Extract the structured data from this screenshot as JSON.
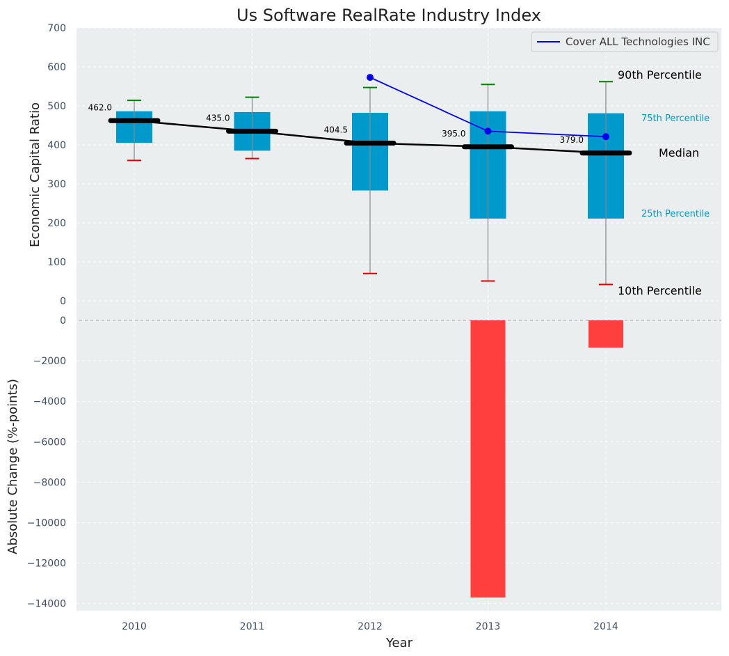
{
  "chart_data": [
    {
      "type": "box",
      "title": "Us Software RealRate Industry Index",
      "ylabel": "Economic Capital Ratio",
      "ylim": [
        0,
        700
      ],
      "yticks": [
        "0",
        "100",
        "200",
        "300",
        "400",
        "500",
        "600",
        "700"
      ],
      "categories": [
        "2010",
        "2011",
        "2012",
        "2013",
        "2014"
      ],
      "p10": [
        360,
        365,
        70,
        51,
        42
      ],
      "p25": [
        405,
        385,
        283,
        211,
        211
      ],
      "median": [
        462.0,
        435.0,
        404.5,
        395.0,
        379.0
      ],
      "median_labels": [
        "462.0",
        "435.0",
        "404.5",
        "395.0",
        "379.0"
      ],
      "p75": [
        486,
        484,
        482,
        486,
        481
      ],
      "p90": [
        514,
        522,
        547,
        555,
        562
      ],
      "series": [
        {
          "name": "Cover ALL Technologies INC",
          "x": [
            "2012",
            "2013",
            "2014"
          ],
          "values": [
            573,
            435,
            421
          ],
          "color": "#0000ee"
        }
      ],
      "annotations": {
        "p90": "90th Percentile",
        "p75": "75th Percentile",
        "median": "Median",
        "p25": "25th Percentile",
        "p10": "10th Percentile"
      },
      "legend_position": "top-right",
      "grid": true,
      "colors": {
        "box": "#0099cc",
        "median": "#000000",
        "whisker_top": "#008000",
        "whisker_bottom": "#dd0000",
        "whisker_line": "#8a8a8a",
        "background": "#eaeeee"
      }
    },
    {
      "type": "bar",
      "xlabel": "Year",
      "ylabel": "Absolute Change (%-points)",
      "ylim": [
        -14300,
        0
      ],
      "yticks": [
        "0",
        "−2000",
        "−4000",
        "−6000",
        "−8000",
        "−10000",
        "−12000",
        "−14000"
      ],
      "categories": [
        "2010",
        "2011",
        "2012",
        "2013",
        "2014"
      ],
      "values": [
        null,
        null,
        null,
        -13700,
        -1350
      ],
      "colors": {
        "bar": "#ff3e3e"
      }
    }
  ]
}
